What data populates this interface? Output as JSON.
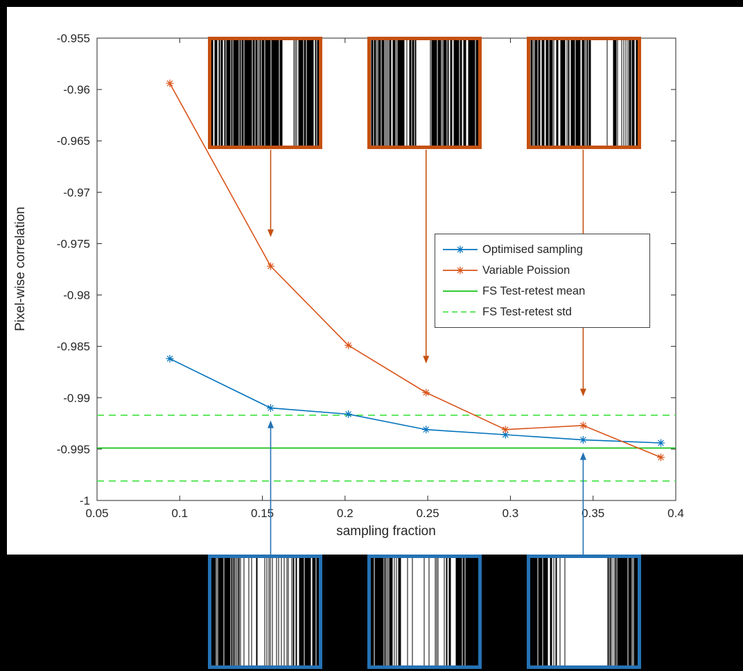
{
  "figure": {
    "outer_background": "#000000",
    "background": "#ffffff",
    "axis_color": "#262626"
  },
  "chart_data": {
    "type": "line",
    "title": "",
    "xlabel": "sampling fraction",
    "ylabel": "Pixel-wise correlation",
    "xlim": [
      0.05,
      0.4
    ],
    "ylim": [
      -1,
      -0.955
    ],
    "grid": false,
    "legend_position": "right-center",
    "xticks": [
      0.05,
      0.1,
      0.15,
      0.2,
      0.25,
      0.3,
      0.35,
      0.4
    ],
    "xtick_labels": [
      "0.05",
      "0.1",
      "0.15",
      "0.2",
      "0.25",
      "0.3",
      "0.35",
      "0.4"
    ],
    "yticks": [
      -1,
      -0.995,
      -0.99,
      -0.985,
      -0.98,
      -0.975,
      -0.97,
      -0.965,
      -0.96,
      -0.955
    ],
    "ytick_labels": [
      "-1",
      "-0.995",
      "-0.99",
      "-0.985",
      "-0.98",
      "-0.975",
      "-0.97",
      "-0.965",
      "-0.96",
      "-0.955"
    ],
    "series": [
      {
        "name": "Optimised sampling",
        "type": "line+marker",
        "marker": "asterisk",
        "color": "#0072BD",
        "x": [
          0.094,
          0.155,
          0.202,
          0.249,
          0.297,
          0.344,
          0.391
        ],
        "y": [
          -0.9862,
          -0.991,
          -0.9916,
          -0.9931,
          -0.9936,
          -0.9941,
          -0.9944
        ]
      },
      {
        "name": "Variable Poission",
        "type": "line+marker",
        "marker": "asterisk",
        "color": "#D95319",
        "x": [
          0.094,
          0.155,
          0.202,
          0.249,
          0.297,
          0.344,
          0.391
        ],
        "y": [
          -0.9594,
          -0.9772,
          -0.9849,
          -0.9895,
          -0.9931,
          -0.9927,
          -0.9958
        ]
      },
      {
        "name": "FS Test-retest mean",
        "type": "hline",
        "line": "solid",
        "color": "#16C216",
        "y_const": [
          -0.9949
        ]
      },
      {
        "name": "FS Test-retest std",
        "type": "hline",
        "line": "dashed",
        "color": "#4CE44C",
        "y_const": [
          -0.9917,
          -0.9981
        ]
      }
    ],
    "insets": {
      "top": {
        "border_color": "#C55111",
        "style": "black-lines-on-white",
        "items": [
          {
            "name": "variable-poisson-mask-1",
            "seed": 7,
            "density": 1.0,
            "target_x": 0.155,
            "has_arrow": true
          },
          {
            "name": "variable-poisson-mask-2",
            "seed": 13,
            "density": 1.0,
            "target_x": 0.249,
            "has_arrow": true
          },
          {
            "name": "variable-poisson-mask-3",
            "seed": 29,
            "density": 1.0,
            "target_x": 0.344,
            "has_arrow": true
          }
        ]
      },
      "bottom": {
        "border_color": "#2572B4",
        "style": "white-lines-on-black",
        "items": [
          {
            "name": "optimised-mask-1",
            "seed": 5,
            "density": 0.85,
            "target_x": 0.155,
            "has_arrow": true
          },
          {
            "name": "optimised-mask-2",
            "seed": 11,
            "density": 1.0,
            "target_x": 0.249,
            "has_arrow": false
          },
          {
            "name": "optimised-mask-3",
            "seed": 23,
            "density": 1.3,
            "target_x": 0.344,
            "has_arrow": true
          }
        ]
      }
    }
  }
}
